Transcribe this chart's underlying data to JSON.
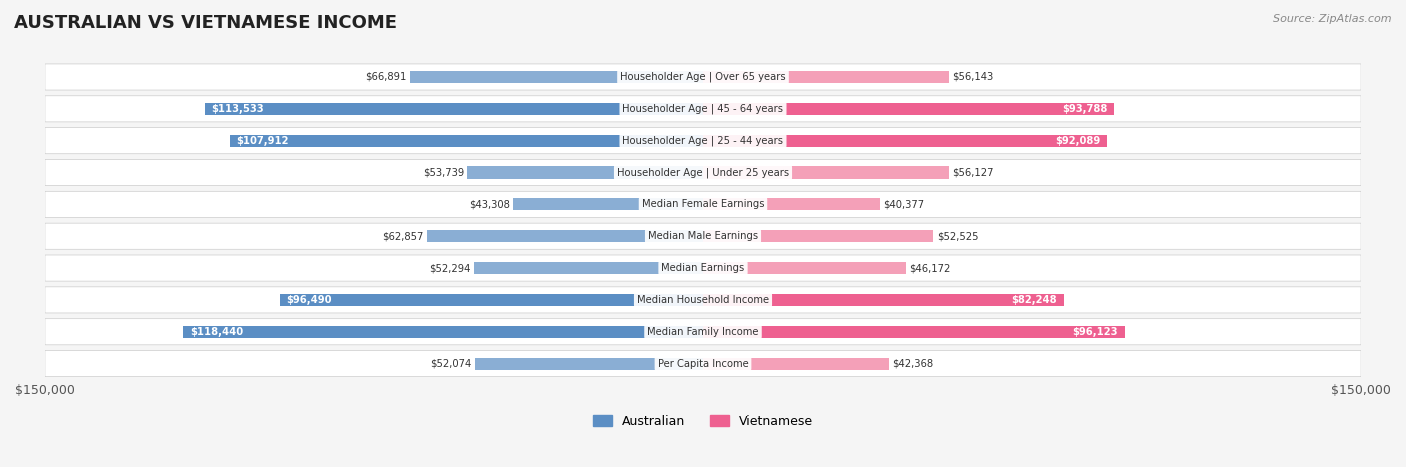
{
  "title": "AUSTRALIAN VS VIETNAMESE INCOME",
  "source": "Source: ZipAtlas.com",
  "categories": [
    "Per Capita Income",
    "Median Family Income",
    "Median Household Income",
    "Median Earnings",
    "Median Male Earnings",
    "Median Female Earnings",
    "Householder Age | Under 25 years",
    "Householder Age | 25 - 44 years",
    "Householder Age | 45 - 64 years",
    "Householder Age | Over 65 years"
  ],
  "australian_values": [
    52074,
    118440,
    96490,
    52294,
    62857,
    43308,
    53739,
    107912,
    113533,
    66891
  ],
  "vietnamese_values": [
    42368,
    96123,
    82248,
    46172,
    52525,
    40377,
    56127,
    92089,
    93788,
    56143
  ],
  "australian_labels": [
    "$52,074",
    "$118,440",
    "$96,490",
    "$52,294",
    "$62,857",
    "$43,308",
    "$53,739",
    "$107,912",
    "$113,533",
    "$66,891"
  ],
  "vietnamese_labels": [
    "$42,368",
    "$96,123",
    "$82,248",
    "$46,172",
    "$52,525",
    "$40,377",
    "$56,127",
    "$92,089",
    "$93,788",
    "$56,143"
  ],
  "max_value": 150000,
  "australian_color": "#8aaed4",
  "australian_color_bold": "#5b8ec4",
  "vietnamese_color": "#f4a0b8",
  "vietnamese_color_bold": "#ee6090",
  "background_color": "#f5f5f5",
  "row_bg_color": "#ffffff",
  "label_threshold": 80000,
  "x_tick_left": "$150,000",
  "x_tick_right": "$150,000"
}
